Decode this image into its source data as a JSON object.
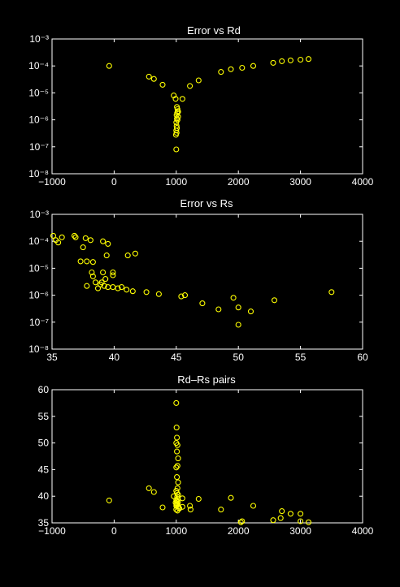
{
  "colors": {
    "background": "#000000",
    "axes": "#ffffff",
    "markers": "#ffff00"
  },
  "chart_data": [
    {
      "type": "scatter",
      "title": "Error vs Rd",
      "xlabel": "",
      "ylabel": "",
      "xlim": [
        -1000,
        4000
      ],
      "ylim": [
        1e-08,
        0.001
      ],
      "yscale": "log",
      "xticks": [
        -1000,
        0,
        1000,
        2000,
        3000,
        4000
      ],
      "xtick_labels": [
        "−1000",
        "0",
        "1000",
        "2000",
        "3000",
        "4000"
      ],
      "yticks": [
        1e-08,
        1e-07,
        1e-06,
        1e-05,
        0.0001,
        0.001
      ],
      "ytick_labels": [
        "10⁻⁸",
        "10⁻⁷",
        "10⁻⁶",
        "10⁻⁵",
        "10⁻⁴",
        "10⁻³"
      ],
      "marker": "circle",
      "grid": false,
      "points": [
        [
          -80,
          0.0001
        ],
        [
          560,
          4e-05
        ],
        [
          640,
          3.3e-05
        ],
        [
          780,
          2e-05
        ],
        [
          1220,
          1.8e-05
        ],
        [
          1360,
          2.9e-05
        ],
        [
          1720,
          6e-05
        ],
        [
          1880,
          7.5e-05
        ],
        [
          2060,
          8.5e-05
        ],
        [
          2240,
          0.0001
        ],
        [
          2560,
          0.00013
        ],
        [
          2700,
          0.00015
        ],
        [
          2840,
          0.00016
        ],
        [
          3000,
          0.00017
        ],
        [
          3130,
          0.00018
        ],
        [
          960,
          8e-06
        ],
        [
          990,
          6e-06
        ],
        [
          1100,
          6e-06
        ],
        [
          1010,
          3e-06
        ],
        [
          1020,
          2.5e-06
        ],
        [
          1025,
          2.1e-06
        ],
        [
          1030,
          2e-06
        ],
        [
          1015,
          1.8e-06
        ],
        [
          1005,
          1.5e-06
        ],
        [
          1030,
          1.3e-06
        ],
        [
          1010,
          1.1e-06
        ],
        [
          1020,
          1e-06
        ],
        [
          1000,
          8e-07
        ],
        [
          1005,
          6e-07
        ],
        [
          1010,
          5e-07
        ],
        [
          1000,
          4e-07
        ],
        [
          1005,
          3.3e-07
        ],
        [
          995,
          2.8e-07
        ],
        [
          1000,
          8e-08
        ]
      ]
    },
    {
      "type": "scatter",
      "title": "Error vs Rs",
      "xlabel": "",
      "ylabel": "",
      "xlim": [
        35,
        60
      ],
      "ylim": [
        1e-08,
        0.001
      ],
      "yscale": "log",
      "xticks": [
        35,
        40,
        45,
        50,
        55,
        60
      ],
      "xtick_labels": [
        "35",
        "40",
        "45",
        "50",
        "55",
        "60"
      ],
      "yticks": [
        1e-08,
        1e-07,
        1e-06,
        1e-05,
        0.0001,
        0.001
      ],
      "ytick_labels": [
        "10⁻⁸",
        "10⁻⁷",
        "10⁻⁶",
        "10⁻⁵",
        "10⁻⁴",
        "10⁻³"
      ],
      "marker": "circle",
      "grid": false,
      "points": [
        [
          35.1,
          0.00016
        ],
        [
          35.3,
          0.00011
        ],
        [
          35.5,
          9e-05
        ],
        [
          35.8,
          0.00014
        ],
        [
          36.8,
          0.00016
        ],
        [
          36.9,
          0.00014
        ],
        [
          37.5,
          6e-05
        ],
        [
          37.7,
          0.00013
        ],
        [
          38.1,
          0.00011
        ],
        [
          39.1,
          0.0001
        ],
        [
          39.5,
          8e-05
        ],
        [
          41.1,
          3e-05
        ],
        [
          41.7,
          3.5e-05
        ],
        [
          39.4,
          3e-05
        ],
        [
          37.3,
          1.8e-05
        ],
        [
          37.8,
          1.8e-05
        ],
        [
          38.3,
          1.7e-05
        ],
        [
          38.2,
          7e-06
        ],
        [
          38.3,
          5e-06
        ],
        [
          39.1,
          7e-06
        ],
        [
          39.3,
          4e-06
        ],
        [
          39.9,
          7e-06
        ],
        [
          39.9,
          5.5e-06
        ],
        [
          38.5,
          3e-06
        ],
        [
          38.9,
          2.5e-06
        ],
        [
          39.0,
          3e-06
        ],
        [
          39.2,
          2.2e-06
        ],
        [
          39.5,
          2e-06
        ],
        [
          39.9,
          2e-06
        ],
        [
          40.3,
          1.8e-06
        ],
        [
          40.6,
          2e-06
        ],
        [
          41.0,
          1.6e-06
        ],
        [
          41.5,
          1.4e-06
        ],
        [
          37.8,
          2.2e-06
        ],
        [
          38.7,
          1.8e-06
        ],
        [
          42.6,
          1.3e-06
        ],
        [
          43.6,
          1.1e-06
        ],
        [
          45.4,
          9e-07
        ],
        [
          45.7,
          1e-06
        ],
        [
          47.1,
          5e-07
        ],
        [
          48.4,
          3e-07
        ],
        [
          49.6,
          8e-07
        ],
        [
          50.0,
          3.5e-07
        ],
        [
          51.0,
          2.5e-07
        ],
        [
          52.9,
          6.5e-07
        ],
        [
          57.5,
          1.3e-06
        ],
        [
          50.0,
          8e-08
        ]
      ]
    },
    {
      "type": "scatter",
      "title": "Rd–Rs pairs",
      "xlabel": "",
      "ylabel": "",
      "xlim": [
        -1000,
        4000
      ],
      "ylim": [
        35,
        60
      ],
      "yscale": "linear",
      "xticks": [
        -1000,
        0,
        1000,
        2000,
        3000,
        4000
      ],
      "xtick_labels": [
        "−1000",
        "0",
        "1000",
        "2000",
        "3000",
        "4000"
      ],
      "yticks": [
        35,
        40,
        45,
        50,
        55,
        60
      ],
      "ytick_labels": [
        "35",
        "40",
        "45",
        "50",
        "55",
        "60"
      ],
      "marker": "circle",
      "grid": false,
      "points": [
        [
          -80,
          39.2
        ],
        [
          560,
          41.5
        ],
        [
          640,
          40.8
        ],
        [
          780,
          37.9
        ],
        [
          1220,
          38.2
        ],
        [
          1230,
          37.5
        ],
        [
          1360,
          39.5
        ],
        [
          1720,
          37.5
        ],
        [
          1880,
          39.7
        ],
        [
          2060,
          35.3
        ],
        [
          2040,
          35.1
        ],
        [
          2240,
          38.2
        ],
        [
          2560,
          35.5
        ],
        [
          2680,
          35.9
        ],
        [
          2700,
          37.2
        ],
        [
          2840,
          36.7
        ],
        [
          3000,
          36.7
        ],
        [
          3130,
          35.1
        ],
        [
          3000,
          35.3
        ],
        [
          960,
          40.0
        ],
        [
          990,
          38.8
        ],
        [
          1100,
          38.0
        ],
        [
          1100,
          39.6
        ],
        [
          1000,
          57.5
        ],
        [
          1005,
          52.9
        ],
        [
          1010,
          51.0
        ],
        [
          1000,
          50.0
        ],
        [
          1020,
          49.6
        ],
        [
          1010,
          48.4
        ],
        [
          1030,
          47.1
        ],
        [
          1020,
          45.7
        ],
        [
          1000,
          45.4
        ],
        [
          1010,
          43.6
        ],
        [
          1030,
          42.6
        ],
        [
          1020,
          41.5
        ],
        [
          1000,
          41.0
        ],
        [
          1010,
          40.6
        ],
        [
          1030,
          40.3
        ],
        [
          1015,
          39.9
        ],
        [
          1025,
          39.5
        ],
        [
          1000,
          39.3
        ],
        [
          1010,
          39.1
        ],
        [
          1030,
          38.9
        ],
        [
          1005,
          38.7
        ],
        [
          1020,
          38.5
        ],
        [
          1010,
          38.3
        ],
        [
          1000,
          38.2
        ],
        [
          1030,
          38.1
        ],
        [
          1040,
          37.8
        ],
        [
          1050,
          37.7
        ],
        [
          1000,
          37.5
        ],
        [
          1020,
          37.3
        ]
      ]
    }
  ]
}
